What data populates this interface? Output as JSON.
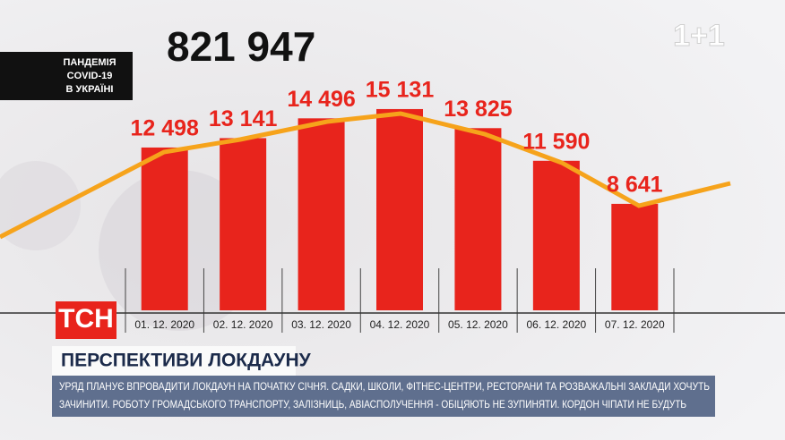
{
  "chart_data": {
    "type": "bar",
    "headline": "821 947",
    "badge": [
      "ПАНДЕМІЯ",
      "COVID-19",
      "В УКРАЇНІ"
    ],
    "categories": [
      "01. 12. 2020",
      "02. 12. 2020",
      "03. 12. 2020",
      "04. 12. 2020",
      "05. 12. 2020",
      "06. 12. 2020",
      "07. 12. 2020"
    ],
    "values": [
      12498,
      13141,
      14496,
      15131,
      13825,
      11590,
      8641
    ],
    "value_labels": [
      "12 498",
      "13 141",
      "14 496",
      "15 131",
      "13 825",
      "11 590",
      "8 641"
    ],
    "color": "#e8241c",
    "ylim": [
      1350,
      22600
    ]
  },
  "logo": "ТСН",
  "channel_logo": "1+1",
  "title": "ПЕРСПЕКТИВИ ЛОКДАУНУ",
  "ticker": [
    "УРЯД ПЛАНУЄ ВПРОВАДИТИ ЛОКДАУН НА ПОЧАТКУ СІЧНЯ. САДКИ, ШКОЛИ, ФІТНЕС-ЦЕНТРИ, РЕСТОРАНИ ТА РОЗВАЖАЛЬНІ ЗАКЛАДИ ХОЧУТЬ",
    "ЗАЧИНИТИ. РОБОТУ ГРОМАДСЬКОГО ТРАНСПОРТУ, ЗАЛІЗНИЦЬ, АВІАСПОЛУЧЕННЯ - ОБІЦЯЮТЬ НЕ ЗУПИНЯТИ. КОРДОН ЧІПАТИ НЕ БУДУТЬ"
  ]
}
